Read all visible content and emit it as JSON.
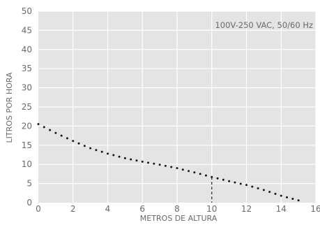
{
  "chart_data": {
    "type": "line",
    "title": "",
    "xlabel": "METROS DE ALTURA",
    "ylabel": "LITROS POR HORA",
    "annotation": "100V-250 VAC, 50/60 Hz",
    "xlim": [
      0,
      16
    ],
    "ylim": [
      0,
      50
    ],
    "x_ticks": [
      0,
      2,
      4,
      6,
      8,
      10,
      12,
      14,
      16
    ],
    "x_tick_labels": [
      "0",
      "2",
      "4",
      "6",
      "8",
      "10",
      "12",
      "14",
      "16"
    ],
    "y_ticks": [
      0,
      5,
      10,
      15,
      20,
      25,
      30,
      35,
      40,
      45,
      50
    ],
    "grid": true,
    "background_color": "#e4e4e4",
    "grid_color": "#ffffff",
    "line_style": "dotted",
    "line_color": "#1a1a1a",
    "series": [
      {
        "x": [
          0,
          1,
          2,
          3,
          4,
          5,
          6,
          7,
          8,
          9,
          10,
          11,
          12,
          13,
          14,
          15
        ],
        "y": [
          20.5,
          18.2,
          16.1,
          14.2,
          12.8,
          11.6,
          10.7,
          9.9,
          9.0,
          7.9,
          6.7,
          5.6,
          4.6,
          3.3,
          1.8,
          0.6
        ]
      }
    ],
    "marker_line": {
      "x": 10,
      "y": 6.7,
      "style": "dashed"
    }
  }
}
